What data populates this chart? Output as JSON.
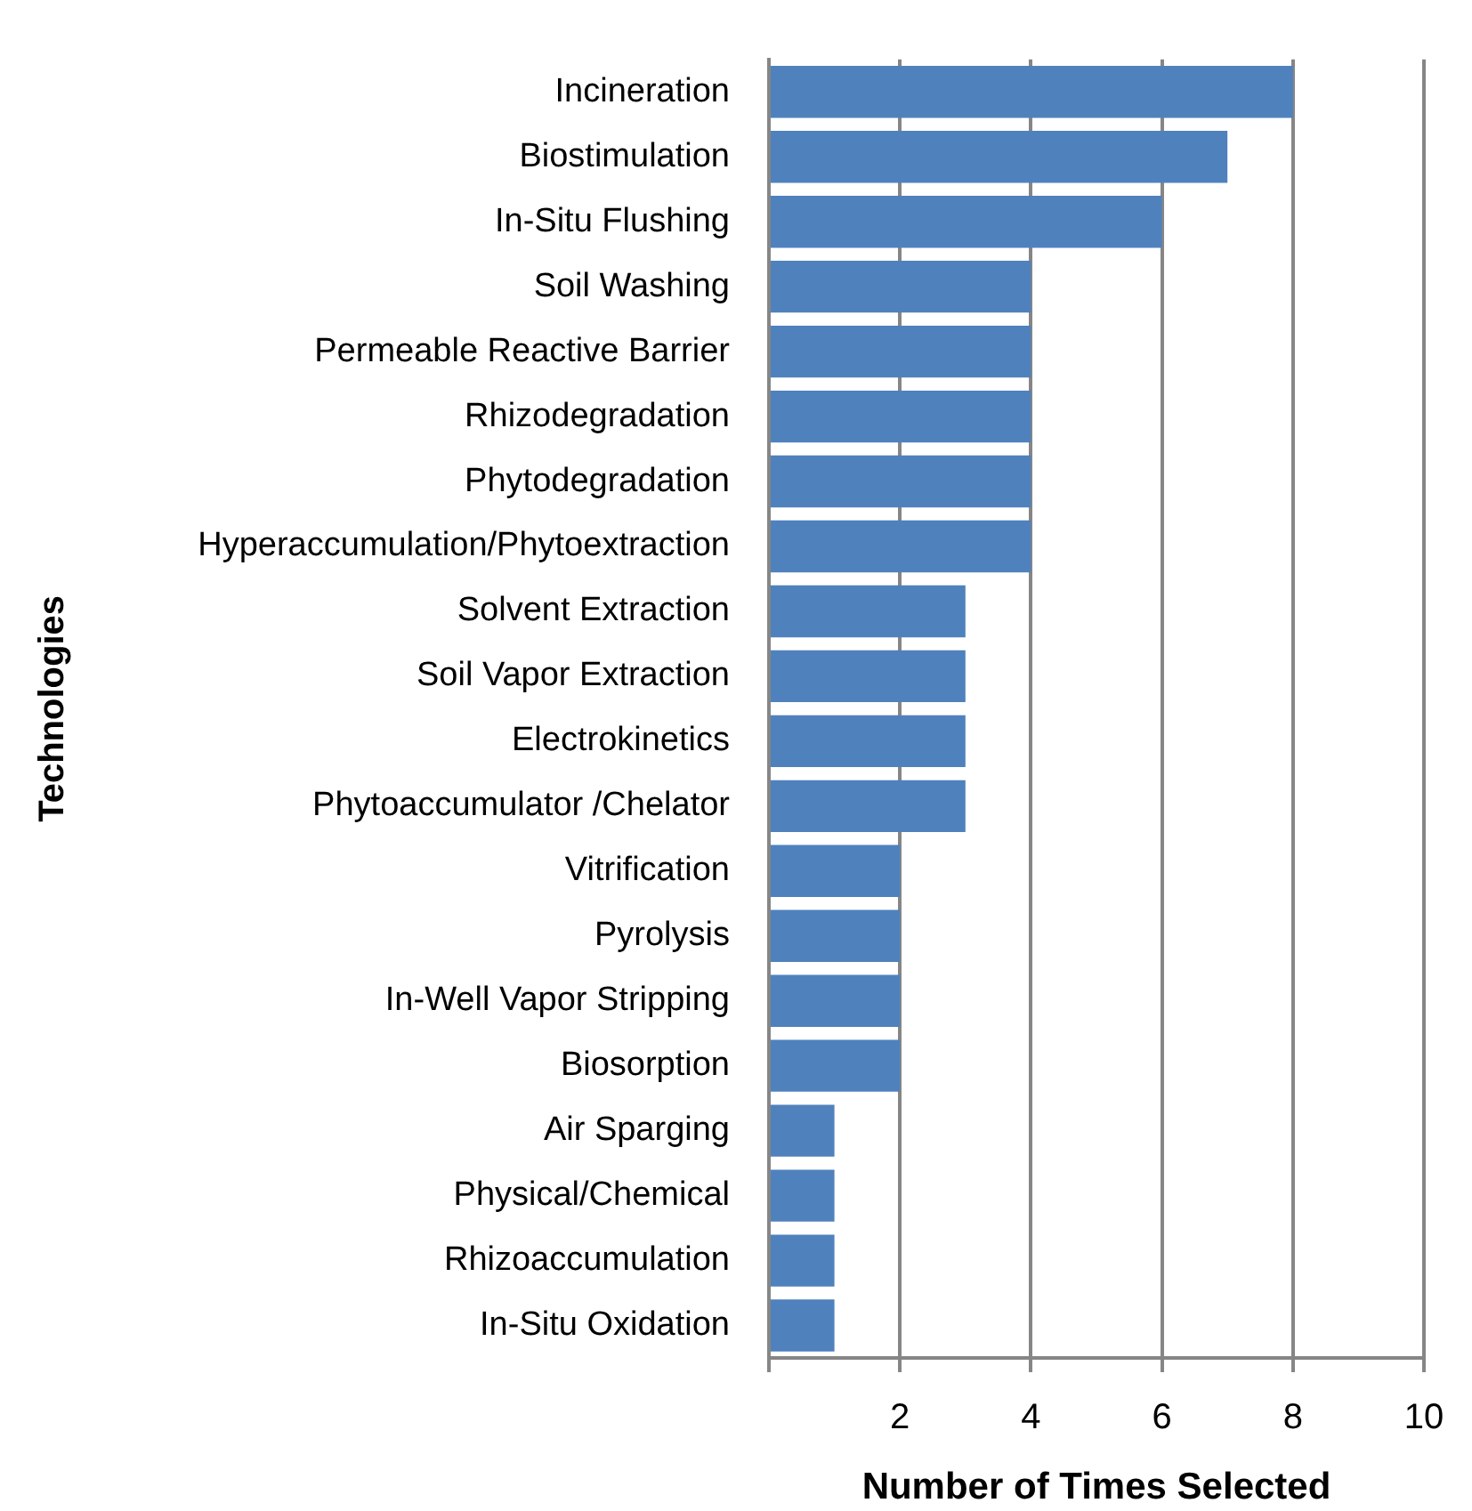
{
  "chart_data": {
    "type": "bar",
    "orientation": "horizontal",
    "xlabel": "Number of Times Selected",
    "ylabel": "Technologies",
    "categories": [
      "Incineration",
      "Biostimulation",
      "In-Situ Flushing",
      "Soil Washing",
      "Permeable Reactive Barrier",
      "Rhizodegradation",
      "Phytodegradation",
      "Hyperaccumulation/Phytoextraction",
      "Solvent Extraction",
      "Soil Vapor Extraction",
      "Electrokinetics",
      "Phytoaccumulator /Chelator",
      "Vitrification",
      "Pyrolysis",
      "In-Well Vapor Stripping",
      "Biosorption",
      "Air Sparging",
      "Physical/Chemical",
      "Rhizoaccumulation",
      "In-Situ Oxidation"
    ],
    "values": [
      8,
      7,
      6,
      4,
      4,
      4,
      4,
      4,
      3,
      3,
      3,
      3,
      2,
      2,
      2,
      2,
      1,
      1,
      1,
      1
    ],
    "color": "#4f81bd",
    "xlim": [
      0,
      10
    ],
    "xticks": [
      {
        "value": 0,
        "label": null
      },
      2,
      4,
      6,
      8,
      10
    ],
    "grid": "x"
  }
}
